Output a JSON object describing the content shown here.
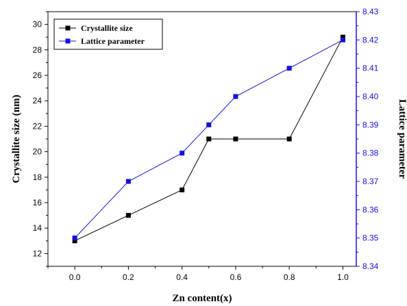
{
  "chart_data": {
    "type": "line",
    "x": [
      0.0,
      0.2,
      0.4,
      0.5,
      0.6,
      0.8,
      1.0
    ],
    "xlabel": "Zn content(x)",
    "xlim": [
      -0.1,
      1.05
    ],
    "xticks": [
      "0.0",
      "0.2",
      "0.4",
      "0.6",
      "0.8",
      "1.0"
    ],
    "ylabel_left": "Crystallite size (nm)",
    "ylim_left": [
      11,
      31
    ],
    "yticks_left": [
      "12",
      "14",
      "16",
      "18",
      "20",
      "22",
      "24",
      "26",
      "28",
      "30"
    ],
    "ylabel_right": "Lattice parameter",
    "ylim_right": [
      8.34,
      8.43
    ],
    "yticks_right": [
      "8.34",
      "8.35",
      "8.36",
      "8.37",
      "8.38",
      "8.39",
      "8.40",
      "8.41",
      "8.42",
      "8.43"
    ],
    "legend_position": "top-left",
    "series": [
      {
        "name": "Crystallite size",
        "axis": "left",
        "color": "#000000",
        "values": [
          13.0,
          15.0,
          17.0,
          21.0,
          21.0,
          21.0,
          29.0
        ]
      },
      {
        "name": "Lattice parameter",
        "axis": "right",
        "color": "#1010e0",
        "values": [
          8.35,
          8.37,
          8.38,
          8.39,
          8.4,
          8.41,
          8.42
        ]
      }
    ]
  }
}
